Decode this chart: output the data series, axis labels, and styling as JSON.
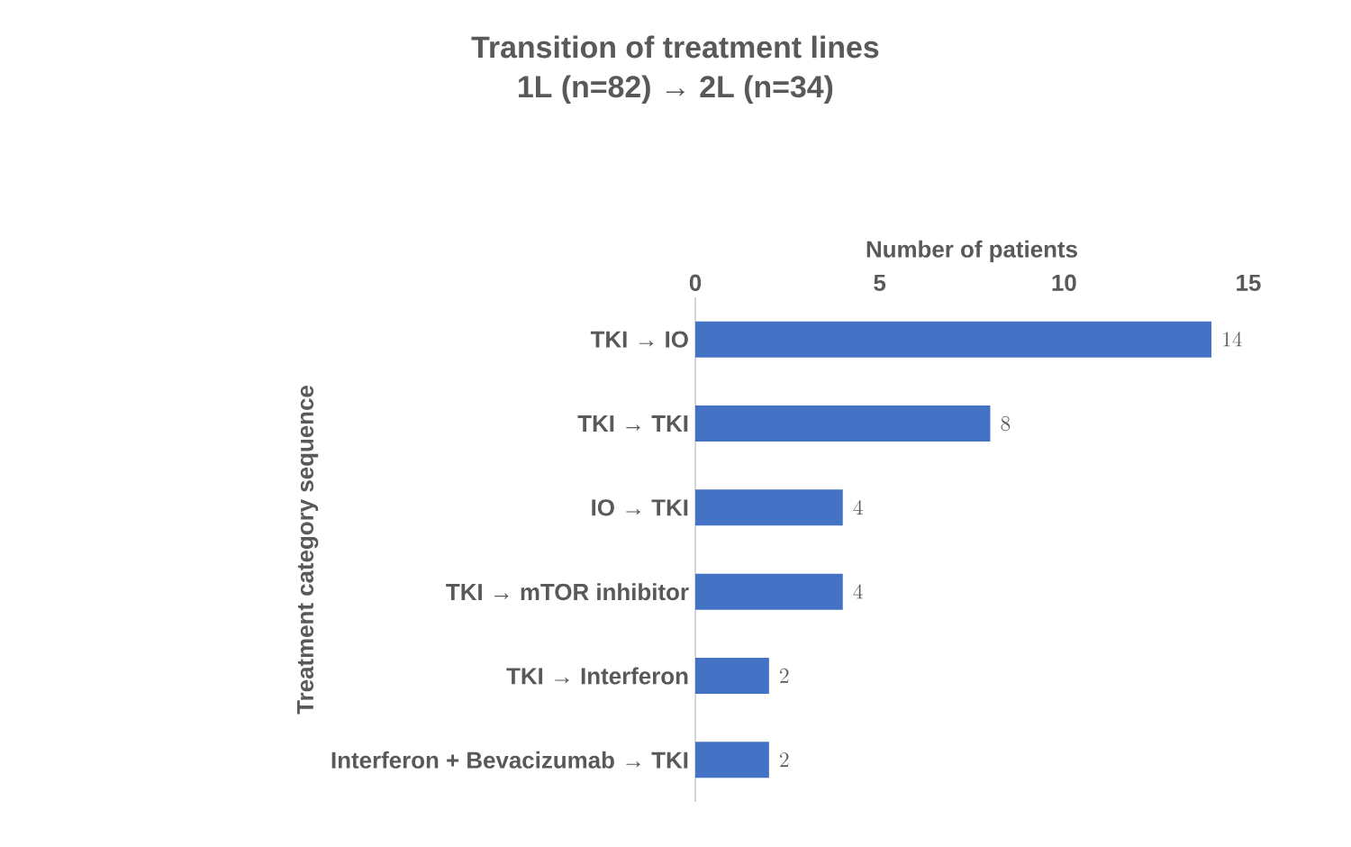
{
  "chart_data": {
    "type": "bar",
    "orientation": "horizontal",
    "title": "Transition of treatment lines",
    "subtitle": "1L (n=82) → 2L (n=34)",
    "xlabel": "Number of patients",
    "ylabel": "Treatment category sequence",
    "categories": [
      "TKI → IO",
      "TKI → TKI",
      "IO → TKI",
      "TKI → mTOR inhibitor",
      "TKI → Interferon",
      "Interferon + Bevacizumab → TKI"
    ],
    "values": [
      14,
      8,
      4,
      4,
      2,
      2
    ],
    "color": "#4472c4",
    "xlim": [
      0,
      15
    ],
    "xticks": [
      0,
      5,
      10,
      15
    ],
    "data_labels": true
  }
}
